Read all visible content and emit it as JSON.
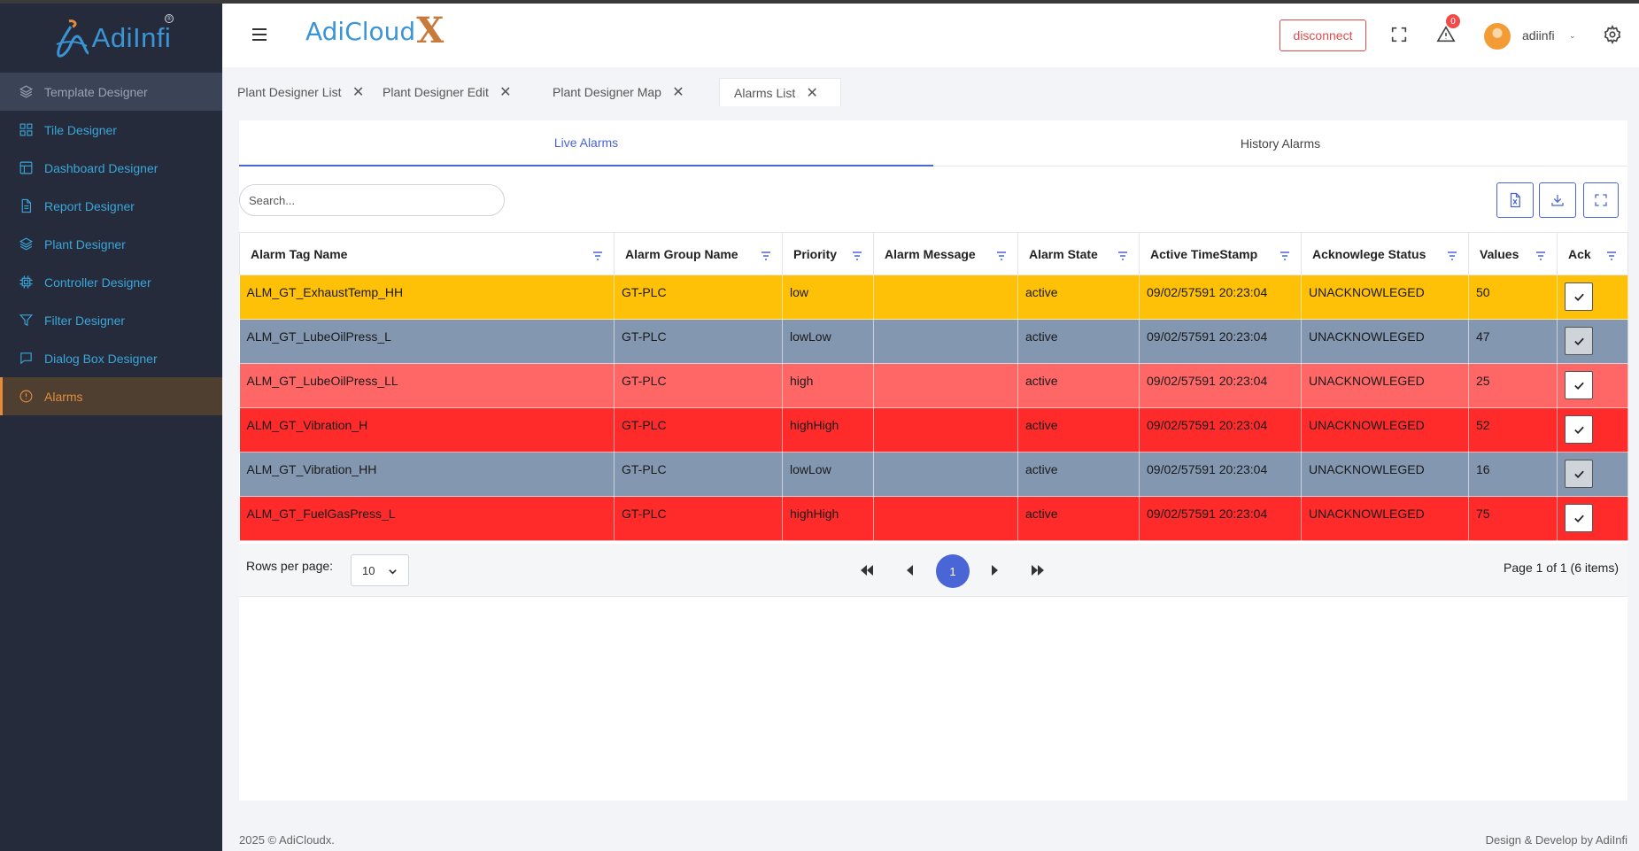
{
  "brand": {
    "name": "AdiInfi",
    "reg": "®"
  },
  "sidebar": {
    "items": [
      {
        "label": "Template Designer",
        "icon": "layers-icon"
      },
      {
        "label": "Tile Designer",
        "icon": "grid-icon"
      },
      {
        "label": "Dashboard Designer",
        "icon": "dashboard-icon"
      },
      {
        "label": "Report Designer",
        "icon": "document-icon"
      },
      {
        "label": "Plant Designer",
        "icon": "layers-icon"
      },
      {
        "label": "Controller Designer",
        "icon": "chip-icon"
      },
      {
        "label": "Filter Designer",
        "icon": "filter-icon"
      },
      {
        "label": "Dialog Box Designer",
        "icon": "chat-icon"
      },
      {
        "label": "Alarms",
        "icon": "alert-circle-icon"
      }
    ]
  },
  "header": {
    "logo_text": "AdiCloud",
    "logo_x": "X",
    "disconnect_label": "disconnect",
    "notification_count": "0",
    "user_name": "adiinfi",
    "user_caret": "⌄"
  },
  "tabs": [
    {
      "label": "Plant Designer List"
    },
    {
      "label": "Plant Designer Edit"
    },
    {
      "label": "Plant Designer Map"
    },
    {
      "label": "Alarms List"
    }
  ],
  "subtabs": {
    "live": "Live Alarms",
    "history": "History Alarms"
  },
  "search": {
    "placeholder": "Search..."
  },
  "table": {
    "columns": [
      "Alarm Tag Name",
      "Alarm Group Name",
      "Priority",
      "Alarm Message",
      "Alarm State",
      "Active TimeStamp",
      "Acknowlege Status",
      "Values",
      "Ack"
    ],
    "rows": [
      {
        "tag": "ALM_GT_ExhaustTemp_HH",
        "group": "GT-PLC",
        "priority": "low",
        "message": "",
        "state": "active",
        "timestamp": "09/02/57591 20:23:04",
        "status": "UNACKNOWLEGED",
        "value": "50"
      },
      {
        "tag": "ALM_GT_LubeOilPress_L",
        "group": "GT-PLC",
        "priority": "lowLow",
        "message": "",
        "state": "active",
        "timestamp": "09/02/57591 20:23:04",
        "status": "UNACKNOWLEGED",
        "value": "47"
      },
      {
        "tag": "ALM_GT_LubeOilPress_LL",
        "group": "GT-PLC",
        "priority": "high",
        "message": "",
        "state": "active",
        "timestamp": "09/02/57591 20:23:04",
        "status": "UNACKNOWLEGED",
        "value": "25"
      },
      {
        "tag": "ALM_GT_Vibration_H",
        "group": "GT-PLC",
        "priority": "highHigh",
        "message": "",
        "state": "active",
        "timestamp": "09/02/57591 20:23:04",
        "status": "UNACKNOWLEGED",
        "value": "52"
      },
      {
        "tag": "ALM_GT_Vibration_HH",
        "group": "GT-PLC",
        "priority": "lowLow",
        "message": "",
        "state": "active",
        "timestamp": "09/02/57591 20:23:04",
        "status": "UNACKNOWLEGED",
        "value": "16"
      },
      {
        "tag": "ALM_GT_FuelGasPress_L",
        "group": "GT-PLC",
        "priority": "highHigh",
        "message": "",
        "state": "active",
        "timestamp": "09/02/57591 20:23:04",
        "status": "UNACKNOWLEGED",
        "value": "75"
      }
    ]
  },
  "priority_colors": {
    "low": "#ffc107",
    "lowLow": "#8497b0",
    "high": "#ff6666",
    "highHigh": "#ff2b2b"
  },
  "pager": {
    "rows_label": "Rows per page:",
    "rows_value": "10",
    "current_page": "1",
    "info": "Page 1 of 1 (6 items)"
  },
  "footer": {
    "left": "2025 © AdiCloudx.",
    "right": "Design & Develop by AdiInfi"
  },
  "accent_color": "#4a66d6"
}
